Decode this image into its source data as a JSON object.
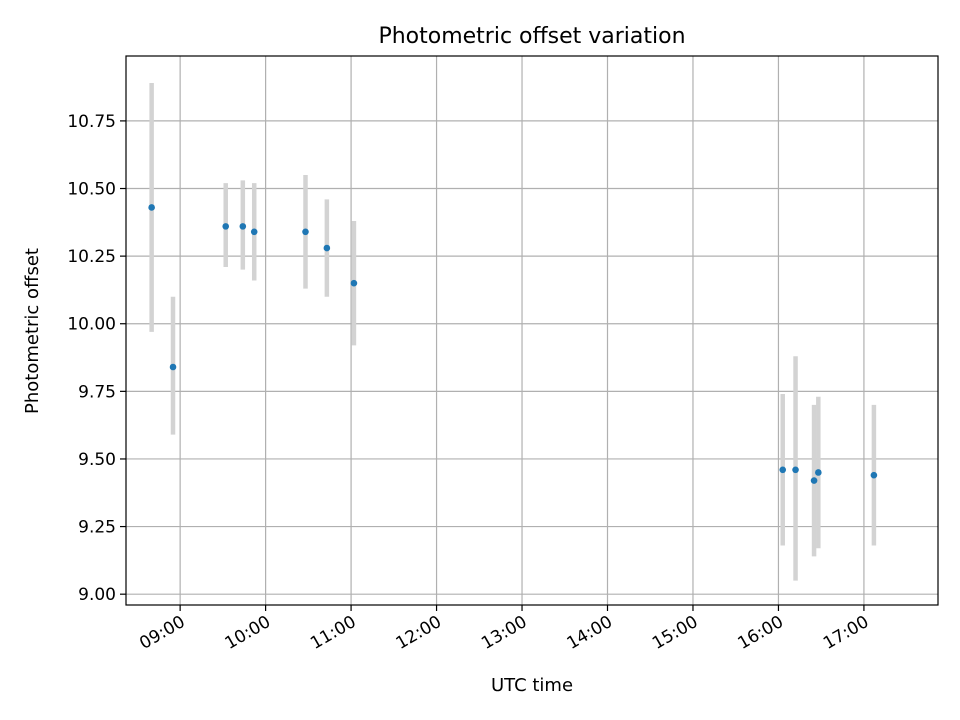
{
  "chart_data": {
    "type": "scatter",
    "title": "Photometric offset variation",
    "xlabel": "UTC time",
    "ylabel": "Photometric offset",
    "xlim": [
      "08:22",
      "17:52"
    ],
    "ylim": [
      8.96,
      10.99
    ],
    "grid": true,
    "x_ticks": [
      "09:00",
      "10:00",
      "11:00",
      "12:00",
      "13:00",
      "14:00",
      "15:00",
      "16:00",
      "17:00"
    ],
    "y_ticks": [
      "9.00",
      "9.25",
      "9.50",
      "9.75",
      "10.00",
      "10.25",
      "10.50",
      "10.75"
    ],
    "point_color": "#1f77b4",
    "errorbar_color": "#d3d3d3",
    "points": [
      {
        "x": "08:40",
        "y": 10.43,
        "y_low": 9.97,
        "y_high": 10.89
      },
      {
        "x": "08:55",
        "y": 9.84,
        "y_low": 9.59,
        "y_high": 10.1
      },
      {
        "x": "09:32",
        "y": 10.36,
        "y_low": 10.21,
        "y_high": 10.52
      },
      {
        "x": "09:44",
        "y": 10.36,
        "y_low": 10.2,
        "y_high": 10.53
      },
      {
        "x": "09:52",
        "y": 10.34,
        "y_low": 10.16,
        "y_high": 10.52
      },
      {
        "x": "10:28",
        "y": 10.34,
        "y_low": 10.13,
        "y_high": 10.55
      },
      {
        "x": "10:43",
        "y": 10.28,
        "y_low": 10.1,
        "y_high": 10.46
      },
      {
        "x": "11:02",
        "y": 10.15,
        "y_low": 9.92,
        "y_high": 10.38
      },
      {
        "x": "16:03",
        "y": 9.46,
        "y_low": 9.18,
        "y_high": 9.74
      },
      {
        "x": "16:12",
        "y": 9.46,
        "y_low": 9.05,
        "y_high": 9.88
      },
      {
        "x": "16:25",
        "y": 9.42,
        "y_low": 9.14,
        "y_high": 9.7
      },
      {
        "x": "16:28",
        "y": 9.45,
        "y_low": 9.17,
        "y_high": 9.73
      },
      {
        "x": "17:07",
        "y": 9.44,
        "y_low": 9.18,
        "y_high": 9.7
      }
    ]
  }
}
